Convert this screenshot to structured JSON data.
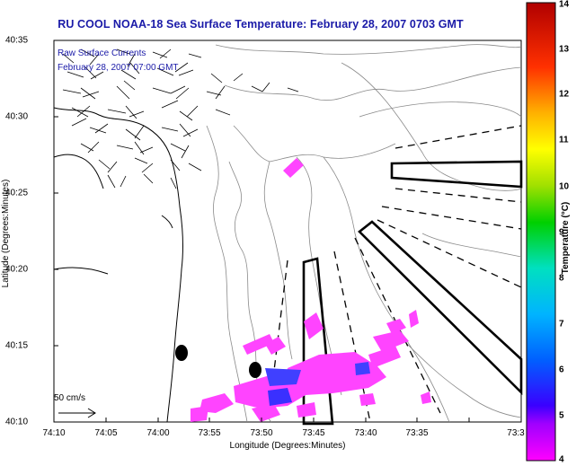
{
  "title": "RU COOL  NOAA-18  Sea Surface Temperature:  February 28, 2007 0703 GMT",
  "annotation": {
    "line1": "Raw Surface Currents",
    "line2": "February 28, 2007 07:00 GMT"
  },
  "axes": {
    "xlabel": "Longitude (Degrees:Minutes)",
    "ylabel": "Latitude (Degrees:Minutes)",
    "x_ticks": [
      "74:10",
      "74:05",
      "74:00",
      "73:55",
      "73:50",
      "73:45",
      "73:40",
      "73:35",
      "73:3"
    ],
    "y_ticks": [
      "40:35",
      "40:30",
      "40:25",
      "40:20",
      "40:15",
      "40:10"
    ]
  },
  "scale": {
    "label": "50 cm/s"
  },
  "colorbar": {
    "label": "Temperature (°C)",
    "ticks": [
      "14",
      "13",
      "12",
      "11",
      "10",
      "9",
      "8",
      "7",
      "6",
      "5",
      "4"
    ],
    "min": 4,
    "max": 14,
    "colors": [
      "#ff00ff",
      "#3a00ff",
      "#0060ff",
      "#00b4ff",
      "#00e0c0",
      "#00d000",
      "#a0e000",
      "#ffff00",
      "#ffb000",
      "#ff3000",
      "#b00000"
    ]
  },
  "colors": {
    "title": "#1a1aa8",
    "land": "#ffffff",
    "sst_pixels": "#ff44ff",
    "cold_pixels": "#4040ff"
  }
}
